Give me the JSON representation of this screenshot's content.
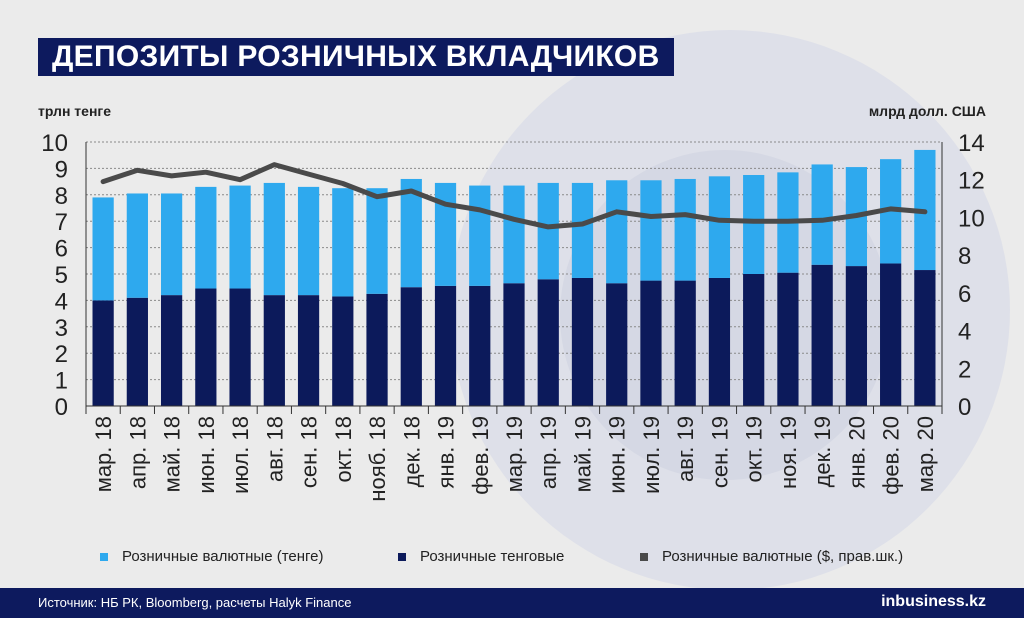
{
  "title": "ДЕПОЗИТЫ РОЗНИЧНЫХ ВКЛАДЧИКОВ",
  "left_unit": "трлн тенге",
  "right_unit": "млрд долл. США",
  "legend": [
    {
      "label": "Розничные валютные (тенге)",
      "color": "#2ea9ee"
    },
    {
      "label": "Розничные тенговые",
      "color": "#0c1a5b"
    },
    {
      "label": "Розничные валютные ($, прав.шк.)",
      "color": "#4a4a4a"
    }
  ],
  "source": "Источник: НБ РК, Bloomberg, расчеты  Halyk Finance",
  "logo": "inbusiness.kz",
  "chart_data": {
    "type": "bar",
    "stacked": true,
    "categories": [
      "мар. 18",
      "апр. 18",
      "май. 18",
      "июн. 18",
      "июл. 18",
      "авг. 18",
      "сен. 18",
      "окт. 18",
      "нояб. 18",
      "дек. 18",
      "янв. 19",
      "фев. 19",
      "мар. 19",
      "апр. 19",
      "май. 19",
      "июн. 19",
      "июл. 19",
      "авг. 19",
      "сен. 19",
      "окт. 19",
      "ноя. 19",
      "дек. 19",
      "янв. 20",
      "фев. 20",
      "мар. 20"
    ],
    "series": [
      {
        "name": "Розничные тенговые",
        "color": "#0c1a5b",
        "values": [
          4.0,
          4.1,
          4.2,
          4.45,
          4.45,
          4.2,
          4.2,
          4.15,
          4.25,
          4.5,
          4.55,
          4.55,
          4.65,
          4.8,
          4.85,
          4.65,
          4.75,
          4.75,
          4.85,
          5.0,
          5.05,
          5.35,
          5.3,
          5.4,
          5.15
        ]
      },
      {
        "name": "Розничные валютные (тенге)",
        "color": "#2ea9ee",
        "values": [
          3.9,
          3.95,
          3.85,
          3.85,
          3.9,
          4.25,
          4.1,
          4.1,
          4.0,
          4.1,
          3.9,
          3.8,
          3.7,
          3.65,
          3.6,
          3.9,
          3.8,
          3.85,
          3.85,
          3.75,
          3.8,
          3.8,
          3.75,
          3.95,
          4.55
        ]
      }
    ],
    "line_series": {
      "name": "Розничные валютные ($, прав.шк.)",
      "axis": "right",
      "color": "#4a4a4a",
      "values": [
        11.9,
        12.5,
        12.2,
        12.4,
        12.0,
        12.8,
        12.3,
        11.8,
        11.1,
        11.4,
        10.7,
        10.4,
        9.9,
        9.5,
        9.65,
        10.3,
        10.05,
        10.15,
        9.85,
        9.8,
        9.8,
        9.85,
        10.1,
        10.45,
        10.3
      ]
    },
    "ylim_left": [
      0,
      10
    ],
    "ylim_right": [
      0,
      14
    ],
    "yticks_left": [
      0,
      1,
      2,
      3,
      4,
      5,
      6,
      7,
      8,
      9,
      10
    ],
    "yticks_right": [
      0,
      2,
      4,
      6,
      8,
      10,
      12,
      14
    ],
    "grid": true
  }
}
